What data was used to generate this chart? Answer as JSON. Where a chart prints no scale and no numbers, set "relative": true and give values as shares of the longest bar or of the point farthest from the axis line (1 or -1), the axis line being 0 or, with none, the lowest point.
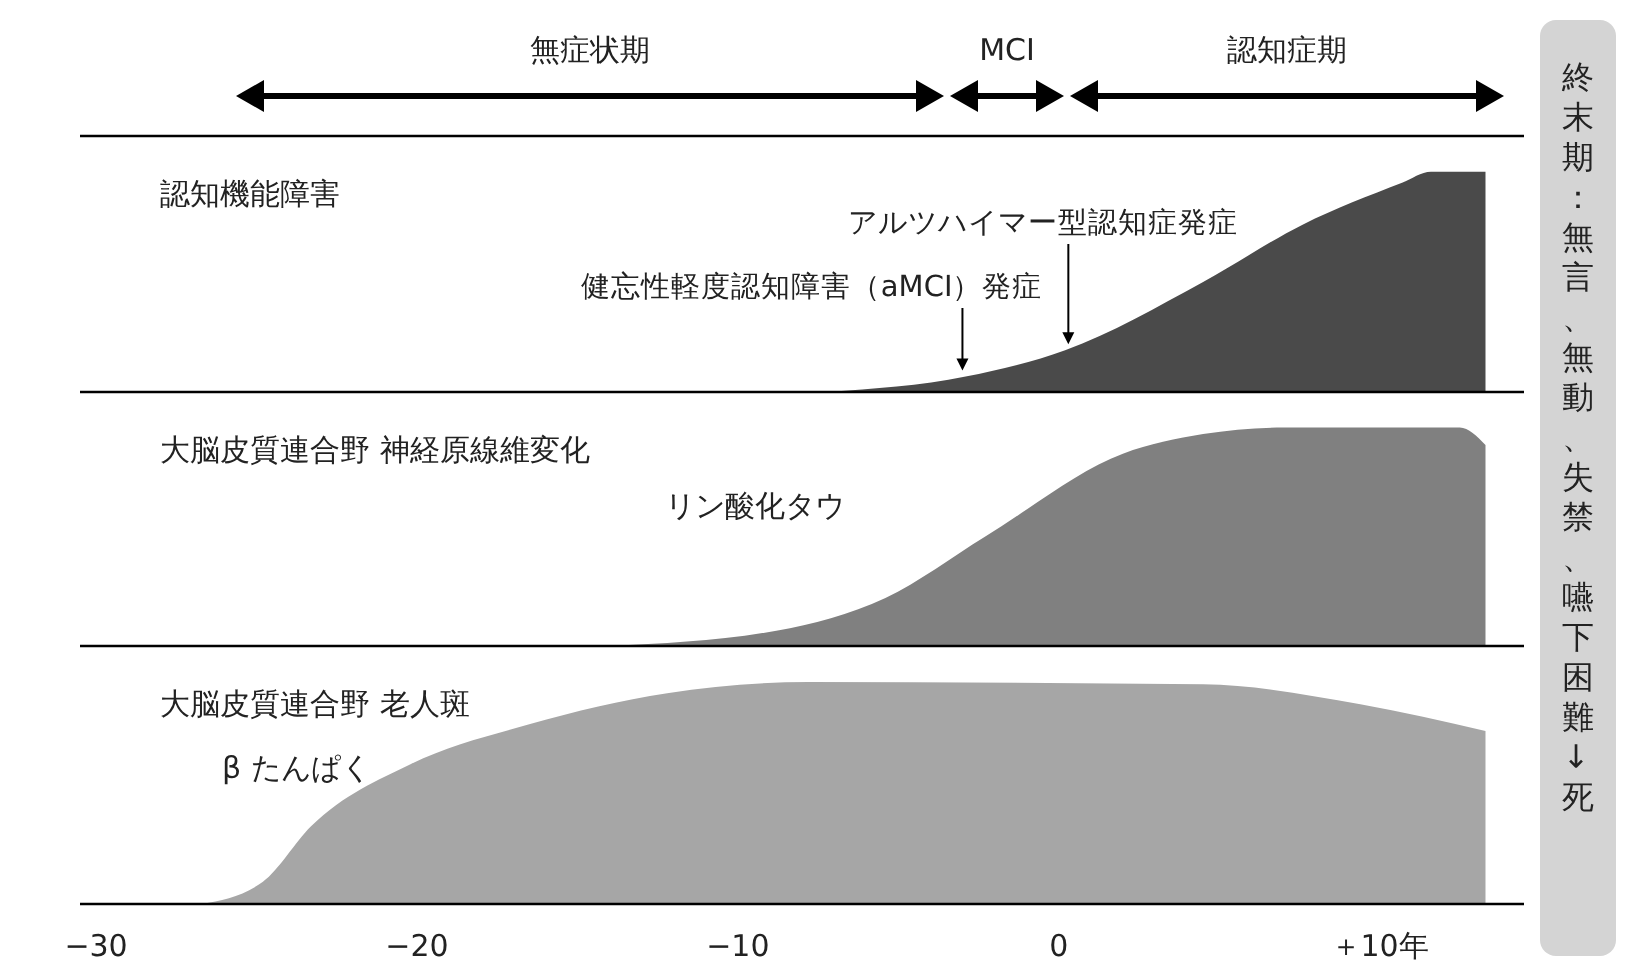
{
  "chart_data": [
    {
      "type": "area",
      "title": "認知機能障害",
      "relative": true,
      "xlim": [
        -30.5,
        14.5
      ],
      "xticks": [
        {
          "value": -30,
          "label": null
        },
        {
          "value": -20,
          "label": null
        },
        {
          "value": -10,
          "label": null
        },
        {
          "value": 0,
          "label": null
        },
        {
          "value": 10,
          "label": null
        }
      ],
      "tick_labels": false,
      "series": [
        {
          "color": "#4a4a4a",
          "x": [
            -7.2,
            -2.9,
            0.2,
            4.5,
            7.6,
            10.7,
            11.6,
            13.3
          ],
          "values": [
            0,
            0.07,
            0.19,
            0.5,
            0.76,
            0.95,
            1,
            1
          ]
        }
      ],
      "annotations": [
        {
          "text": "健忘性軽度認知障害（aMCI）発症",
          "x": -3,
          "y": 0.07
        },
        {
          "text": "アルツハイマー型認知症発症",
          "x": 0.3,
          "y": 0.19
        }
      ]
    },
    {
      "type": "area",
      "title": "大脳皮質連合野 神経原線維変化",
      "relative": true,
      "xlim": [
        -30.5,
        14.5
      ],
      "xticks": [
        {
          "value": -30,
          "label": null
        },
        {
          "value": -20,
          "label": null
        },
        {
          "value": -10,
          "label": null
        },
        {
          "value": 0,
          "label": null
        },
        {
          "value": 10,
          "label": null
        }
      ],
      "tick_labels": false,
      "series": [
        {
          "name": "リン酸化タウ",
          "color": "#808080",
          "x": [
            -14,
            -8.8,
            -5.4,
            -2.3,
            2,
            4.5,
            7,
            12.5,
            13.3
          ],
          "values": [
            0,
            0.07,
            0.22,
            0.5,
            0.88,
            0.97,
            1,
            1,
            0.92
          ]
        }
      ]
    },
    {
      "type": "area",
      "title": "大脳皮質連合野 老人斑",
      "relative": true,
      "xlim": [
        -30.5,
        14.5
      ],
      "xticks": [
        {
          "value": -30,
          "label": "−30"
        },
        {
          "value": -20,
          "label": "−20"
        },
        {
          "value": -10,
          "label": "−10"
        },
        {
          "value": 0,
          "label": "0"
        },
        {
          "value": 10,
          "label": "＋10年"
        }
      ],
      "tick_labels": "x",
      "series": [
        {
          "name": "β たんぱく",
          "color": "#a6a6a6",
          "x": [
            -26.7,
            -24.8,
            -23.3,
            -20.2,
            -16.5,
            -12.2,
            -7.8,
            4.5,
            9.4,
            13.3
          ],
          "values": [
            0,
            0.1,
            0.35,
            0.63,
            0.81,
            0.95,
            1,
            0.99,
            0.9,
            0.78
          ]
        }
      ]
    },
    {
      "type": "other",
      "annotations": [
        "終末期：無言、無動、失禁、嚥下困難→死"
      ]
    },
    {
      "type": "other",
      "annotations": [
        "無症状期",
        "MCI",
        "認知症期"
      ]
    }
  ]
}
